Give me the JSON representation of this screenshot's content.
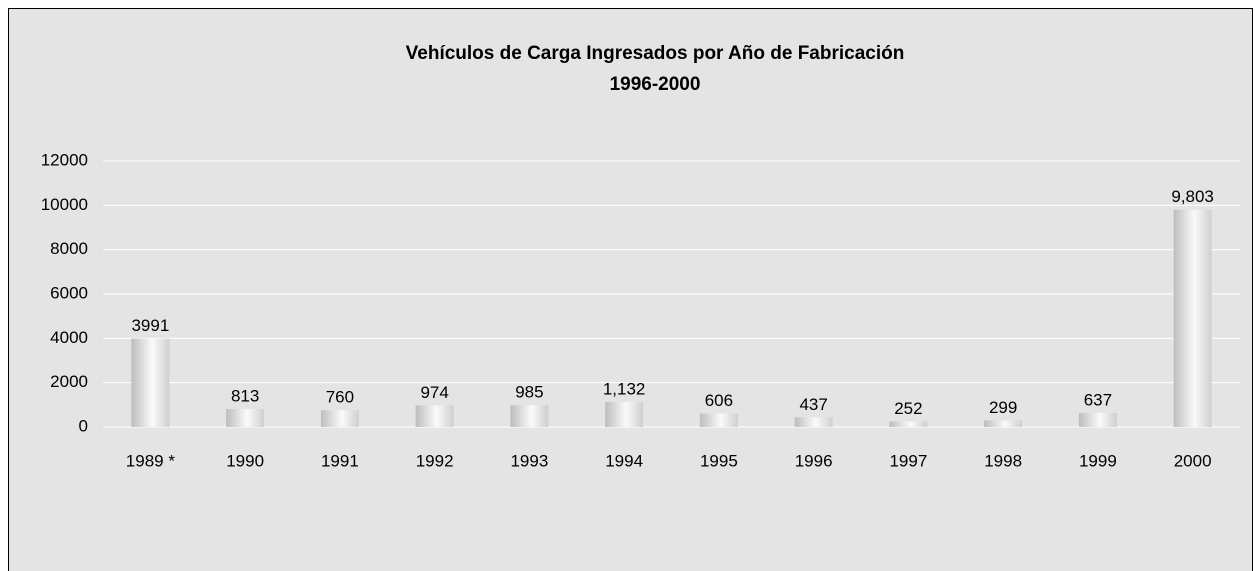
{
  "chart_data": {
    "type": "bar",
    "title": "Vehículos de Carga Ingresados por Año de Fabricación",
    "subtitle": "1996-2000",
    "categories": [
      "1989 *",
      "1990",
      "1991",
      "1992",
      "1993",
      "1994",
      "1995",
      "1996",
      "1997",
      "1998",
      "1999",
      "2000"
    ],
    "values": [
      3991,
      813,
      760,
      974,
      985,
      1132,
      606,
      437,
      252,
      299,
      637,
      9803
    ],
    "value_labels": [
      "3991",
      "813",
      "760",
      "974",
      "985",
      "1,132",
      "606",
      "437",
      "252",
      "299",
      "637",
      "9,803"
    ],
    "color": "#c8c8c8",
    "ylim": [
      0,
      12000
    ],
    "yticks": [
      0,
      2000,
      4000,
      6000,
      8000,
      10000,
      12000
    ],
    "grid": true
  }
}
